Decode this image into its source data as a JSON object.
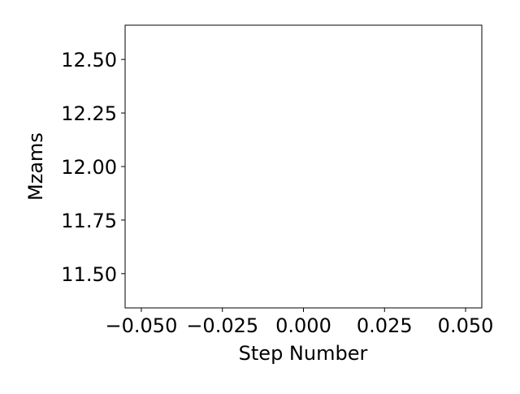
{
  "chart_data": {
    "type": "line",
    "title": "",
    "xlabel": "Step Number",
    "ylabel": "Mzams",
    "xlim": [
      -0.055,
      0.055
    ],
    "ylim": [
      11.34,
      12.66
    ],
    "xticks": [
      -0.05,
      -0.025,
      0.0,
      0.025,
      0.05
    ],
    "xtick_labels": [
      "−0.050",
      "−0.025",
      "0.000",
      "0.025",
      "0.050"
    ],
    "yticks": [
      11.5,
      11.75,
      12.0,
      12.25,
      12.5
    ],
    "ytick_labels": [
      "11.50",
      "11.75",
      "12.00",
      "12.25",
      "12.50"
    ],
    "grid": false,
    "series": [
      {
        "x": [],
        "y": []
      }
    ]
  }
}
